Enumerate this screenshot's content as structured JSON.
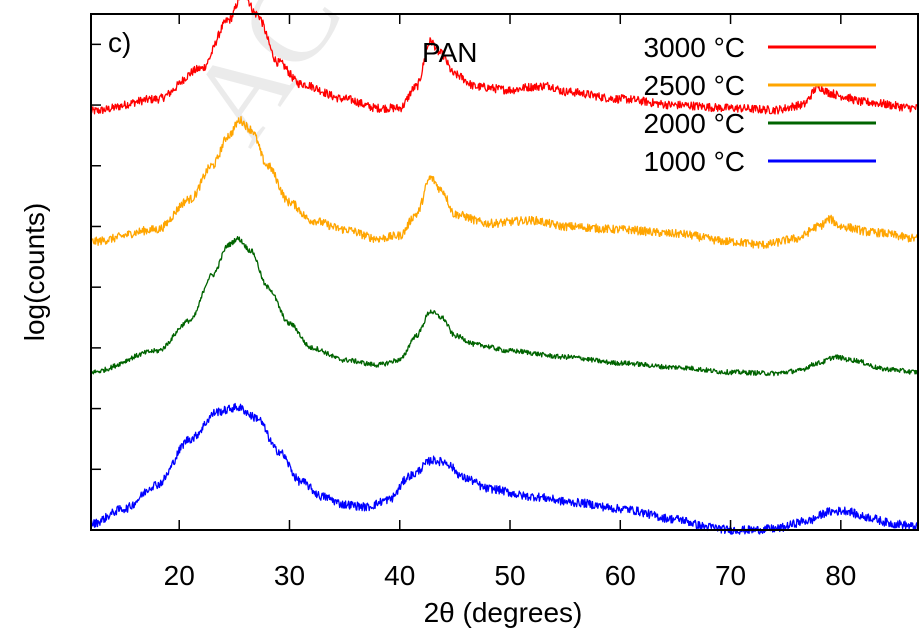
{
  "chart_data": {
    "type": "line",
    "panel_label": "c)",
    "title": "PAN",
    "xlabel": "2θ (degrees)",
    "ylabel": "log(counts)",
    "xlim": [
      12,
      87
    ],
    "ylim": [
      0,
      8.5
    ],
    "x_ticks": [
      20,
      30,
      40,
      50,
      60,
      70,
      80
    ],
    "x_tick_labels": [
      "20",
      "30",
      "40",
      "50",
      "60",
      "70",
      "80"
    ],
    "y_tick_labels_shown": false,
    "grid": false,
    "legend_position": "top-right",
    "watermark": "ACCEPTED",
    "series": [
      {
        "name": "3000 °C",
        "color": "#ff0000",
        "noise": 0.07,
        "points": [
          [
            12,
            6.9
          ],
          [
            18,
            7.1
          ],
          [
            22,
            7.6
          ],
          [
            24.5,
            8.4
          ],
          [
            25.8,
            8.85
          ],
          [
            27,
            8.5
          ],
          [
            29,
            7.7
          ],
          [
            31,
            7.35
          ],
          [
            35,
            7.1
          ],
          [
            38,
            6.95
          ],
          [
            40,
            6.95
          ],
          [
            41.5,
            7.3
          ],
          [
            42.8,
            8.05
          ],
          [
            43.7,
            7.85
          ],
          [
            45,
            7.5
          ],
          [
            47,
            7.3
          ],
          [
            50,
            7.25
          ],
          [
            52,
            7.3
          ],
          [
            53.5,
            7.32
          ],
          [
            55,
            7.22
          ],
          [
            60,
            7.1
          ],
          [
            65,
            7.0
          ],
          [
            70,
            6.95
          ],
          [
            74,
            6.92
          ],
          [
            76.5,
            7.0
          ],
          [
            78,
            7.3
          ],
          [
            79,
            7.2
          ],
          [
            80,
            7.15
          ],
          [
            82,
            7.05
          ],
          [
            87,
            6.95
          ]
        ]
      },
      {
        "name": "2500 °C",
        "color": "#ffa500",
        "noise": 0.07,
        "points": [
          [
            12,
            4.75
          ],
          [
            18,
            4.95
          ],
          [
            21,
            5.45
          ],
          [
            23,
            6.0
          ],
          [
            24.5,
            6.5
          ],
          [
            25.5,
            6.75
          ],
          [
            26.5,
            6.6
          ],
          [
            28,
            6.0
          ],
          [
            30,
            5.4
          ],
          [
            32,
            5.1
          ],
          [
            35,
            4.95
          ],
          [
            38,
            4.8
          ],
          [
            40,
            4.85
          ],
          [
            41.5,
            5.2
          ],
          [
            42.8,
            5.8
          ],
          [
            43.8,
            5.6
          ],
          [
            45,
            5.2
          ],
          [
            48,
            5.05
          ],
          [
            52,
            5.1
          ],
          [
            55,
            5.0
          ],
          [
            60,
            4.95
          ],
          [
            65,
            4.88
          ],
          [
            70,
            4.75
          ],
          [
            73,
            4.7
          ],
          [
            76,
            4.8
          ],
          [
            78,
            5.0
          ],
          [
            79,
            5.12
          ],
          [
            80,
            5.0
          ],
          [
            83,
            4.9
          ],
          [
            87,
            4.8
          ]
        ]
      },
      {
        "name": "2000 °C",
        "color": "#006400",
        "noise": 0.04,
        "points": [
          [
            12,
            2.6
          ],
          [
            18,
            2.95
          ],
          [
            21,
            3.45
          ],
          [
            23,
            4.2
          ],
          [
            24.5,
            4.7
          ],
          [
            25.3,
            4.8
          ],
          [
            26.5,
            4.6
          ],
          [
            28,
            4.0
          ],
          [
            30,
            3.4
          ],
          [
            32,
            3.0
          ],
          [
            35,
            2.8
          ],
          [
            38,
            2.72
          ],
          [
            40,
            2.8
          ],
          [
            41.5,
            3.2
          ],
          [
            42.8,
            3.6
          ],
          [
            43.8,
            3.5
          ],
          [
            45,
            3.2
          ],
          [
            47,
            3.05
          ],
          [
            50,
            2.95
          ],
          [
            55,
            2.85
          ],
          [
            60,
            2.75
          ],
          [
            65,
            2.68
          ],
          [
            70,
            2.6
          ],
          [
            74,
            2.58
          ],
          [
            76,
            2.62
          ],
          [
            78,
            2.75
          ],
          [
            79.5,
            2.85
          ],
          [
            81,
            2.8
          ],
          [
            84,
            2.65
          ],
          [
            87,
            2.6
          ]
        ]
      },
      {
        "name": "1000 °C",
        "color": "#0000ff",
        "noise": 0.07,
        "points": [
          [
            12,
            0.1
          ],
          [
            15,
            0.35
          ],
          [
            18,
            0.75
          ],
          [
            21,
            1.5
          ],
          [
            23.5,
            1.95
          ],
          [
            25.3,
            2.02
          ],
          [
            27,
            1.85
          ],
          [
            29,
            1.3
          ],
          [
            31,
            0.8
          ],
          [
            33,
            0.55
          ],
          [
            35,
            0.42
          ],
          [
            37,
            0.38
          ],
          [
            39,
            0.5
          ],
          [
            41,
            0.9
          ],
          [
            43,
            1.15
          ],
          [
            44,
            1.12
          ],
          [
            46,
            0.85
          ],
          [
            48,
            0.68
          ],
          [
            52,
            0.55
          ],
          [
            56,
            0.45
          ],
          [
            60,
            0.35
          ],
          [
            65,
            0.18
          ],
          [
            68,
            0.05
          ],
          [
            70,
            0.0
          ],
          [
            72,
            0.0
          ],
          [
            74,
            0.02
          ],
          [
            77,
            0.15
          ],
          [
            79,
            0.3
          ],
          [
            80.5,
            0.32
          ],
          [
            82,
            0.22
          ],
          [
            85,
            0.1
          ],
          [
            87,
            0.05
          ]
        ]
      }
    ]
  }
}
